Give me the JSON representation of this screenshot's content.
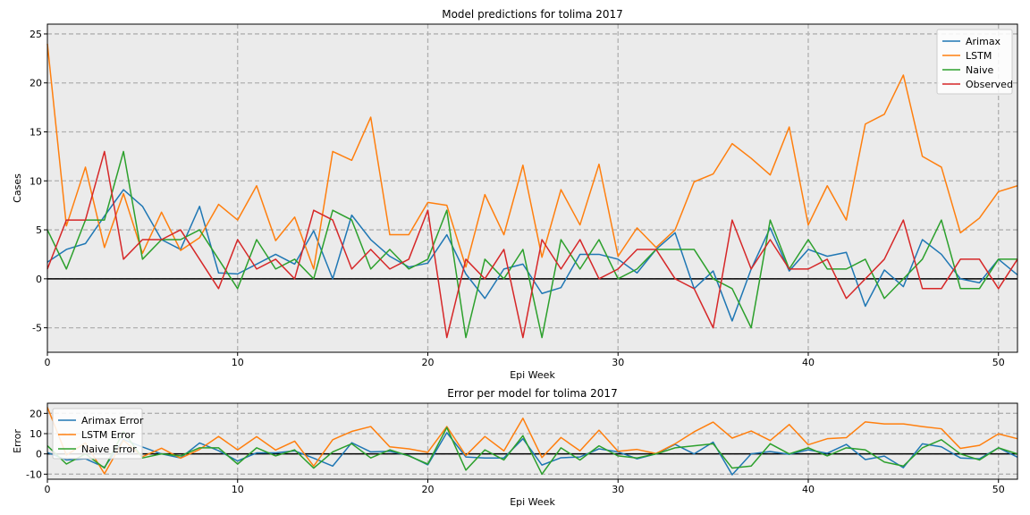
{
  "chart_data": [
    {
      "type": "line",
      "title": "Model predictions for tolima 2017",
      "xlabel": "Epi Week",
      "ylabel": "Cases",
      "xlim": [
        0,
        51
      ],
      "ylim": [
        -7.5,
        26
      ],
      "xticks": [
        0,
        10,
        20,
        30,
        40,
        50
      ],
      "yticks": [
        -5,
        0,
        5,
        10,
        15,
        20,
        25
      ],
      "grid": true,
      "legend": "top-right",
      "x": [
        0,
        1,
        2,
        3,
        4,
        5,
        6,
        7,
        8,
        9,
        10,
        11,
        12,
        13,
        14,
        15,
        16,
        17,
        18,
        19,
        20,
        21,
        22,
        23,
        24,
        25,
        26,
        27,
        28,
        29,
        30,
        31,
        32,
        33,
        34,
        35,
        36,
        37,
        38,
        39,
        40,
        41,
        42,
        43,
        44,
        45,
        46,
        47,
        48,
        49,
        50,
        51
      ],
      "series": [
        {
          "name": "Arimax",
          "color": "#1f77b4",
          "values": [
            1.7,
            3.0,
            3.6,
            6.4,
            9.1,
            7.4,
            4.0,
            3.0,
            7.4,
            0.6,
            0.5,
            1.5,
            2.5,
            1.5,
            4.9,
            0.0,
            6.5,
            4.0,
            2.3,
            1.2,
            1.6,
            4.5,
            0.5,
            -2.0,
            1.0,
            1.5,
            -1.5,
            -0.9,
            2.5,
            2.5,
            2.0,
            0.6,
            3.0,
            4.7,
            -1.0,
            0.8,
            -4.3,
            1.0,
            5.2,
            0.8,
            3.0,
            2.3,
            2.7,
            -2.8,
            0.9,
            -0.8,
            4.0,
            2.5,
            0.0,
            -0.4,
            2.0,
            0.4
          ]
        },
        {
          "name": "LSTM",
          "color": "#ff7f0e",
          "values": [
            24.0,
            5.4,
            11.4,
            3.2,
            8.7,
            2.6,
            6.8,
            2.9,
            4.2,
            7.6,
            6.0,
            9.5,
            3.9,
            6.3,
            1.0,
            13.0,
            12.1,
            16.5,
            4.5,
            4.5,
            7.8,
            7.5,
            1.2,
            8.6,
            4.5,
            11.6,
            2.2,
            9.1,
            5.5,
            11.7,
            2.3,
            5.2,
            3.2,
            5.0,
            9.9,
            10.7,
            13.8,
            12.3,
            10.6,
            15.5,
            5.5,
            9.5,
            6.0,
            15.8,
            16.8,
            20.8,
            12.5,
            11.4,
            4.7,
            6.2,
            8.9,
            9.5
          ]
        },
        {
          "name": "Naive",
          "color": "#2ca02c",
          "values": [
            5.0,
            1.0,
            6.0,
            6.0,
            13.0,
            2.0,
            4.0,
            4.0,
            5.0,
            2.0,
            -1.0,
            4.0,
            1.0,
            2.0,
            0.0,
            7.0,
            6.0,
            1.0,
            3.0,
            1.0,
            2.0,
            7.0,
            -6.0,
            2.0,
            0.0,
            3.0,
            -6.0,
            4.0,
            1.0,
            4.0,
            0.0,
            1.0,
            3.0,
            3.0,
            3.0,
            0.0,
            -1.0,
            -5.0,
            6.0,
            1.0,
            4.0,
            1.0,
            1.0,
            2.0,
            -2.0,
            0.0,
            2.0,
            6.0,
            -1.0,
            -1.0,
            2.0,
            2.0
          ]
        },
        {
          "name": "Observed",
          "color": "#d62728",
          "values": [
            1.0,
            6.0,
            6.0,
            13.0,
            2.0,
            4.0,
            4.0,
            5.0,
            2.0,
            -1.0,
            4.0,
            1.0,
            2.0,
            0.0,
            7.0,
            6.0,
            1.0,
            3.0,
            1.0,
            2.0,
            7.0,
            -6.0,
            2.0,
            0.0,
            3.0,
            -6.0,
            4.0,
            1.0,
            4.0,
            0.0,
            1.0,
            3.0,
            3.0,
            0.0,
            -1.0,
            -5.0,
            6.0,
            1.0,
            4.0,
            1.0,
            1.0,
            2.0,
            -2.0,
            0.0,
            2.0,
            6.0,
            -1.0,
            -1.0,
            2.0,
            2.0,
            -1.0,
            2.0
          ]
        }
      ]
    },
    {
      "type": "line",
      "title": "Error per model for tolima 2017",
      "xlabel": "Epi Week",
      "ylabel": "Error",
      "xlim": [
        0,
        51
      ],
      "ylim": [
        -12.5,
        25
      ],
      "xticks": [
        0,
        10,
        20,
        30,
        40,
        50
      ],
      "yticks": [
        -10,
        0,
        10,
        20
      ],
      "grid": true,
      "legend": "top-left",
      "x": [
        0,
        1,
        2,
        3,
        4,
        5,
        6,
        7,
        8,
        9,
        10,
        11,
        12,
        13,
        14,
        15,
        16,
        17,
        18,
        19,
        20,
        21,
        22,
        23,
        24,
        25,
        26,
        27,
        28,
        29,
        30,
        31,
        32,
        33,
        34,
        35,
        36,
        37,
        38,
        39,
        40,
        41,
        42,
        43,
        44,
        45,
        46,
        47,
        48,
        49,
        50,
        51
      ],
      "series": [
        {
          "name": "Arimax Error",
          "color": "#1f77b4",
          "values": [
            0.7,
            -3.0,
            -2.4,
            -6.6,
            7.1,
            3.4,
            0.0,
            -2.0,
            5.4,
            1.6,
            -3.5,
            0.5,
            0.5,
            1.5,
            -2.1,
            -6.0,
            5.5,
            1.0,
            1.3,
            -0.8,
            -5.4,
            10.5,
            -1.5,
            -2.0,
            -2.0,
            7.5,
            -5.5,
            -1.9,
            -1.5,
            2.5,
            1.0,
            -2.4,
            0.0,
            4.7,
            0.0,
            5.8,
            -10.3,
            0.0,
            1.2,
            -0.2,
            2.0,
            0.3,
            4.7,
            -2.8,
            -1.1,
            -6.8,
            5.0,
            3.5,
            -2.0,
            -2.4,
            3.0,
            -1.6
          ]
        },
        {
          "name": "LSTM Error",
          "color": "#ff7f0e",
          "values": [
            23.0,
            -0.6,
            5.4,
            -9.8,
            6.7,
            -1.4,
            2.8,
            -2.1,
            2.2,
            8.6,
            2.0,
            8.5,
            1.9,
            6.3,
            -6.0,
            7.0,
            11.1,
            13.5,
            3.5,
            2.5,
            0.8,
            13.5,
            -0.8,
            8.6,
            1.5,
            17.6,
            -1.8,
            8.1,
            1.5,
            11.7,
            1.3,
            2.2,
            0.2,
            5.0,
            10.9,
            15.7,
            7.8,
            11.3,
            6.6,
            14.5,
            4.5,
            7.5,
            8.0,
            15.8,
            14.8,
            14.8,
            13.5,
            12.4,
            2.7,
            4.2,
            9.9,
            7.5
          ]
        },
        {
          "name": "Naive Error",
          "color": "#2ca02c",
          "values": [
            4.0,
            -5.0,
            0.0,
            -7.0,
            11.0,
            -2.0,
            0.0,
            -1.0,
            3.0,
            3.0,
            -5.0,
            3.0,
            -1.0,
            2.0,
            -7.0,
            1.0,
            5.0,
            -2.0,
            2.0,
            -1.0,
            -5.0,
            13.0,
            -8.0,
            2.0,
            -3.0,
            9.0,
            -10.0,
            3.0,
            -3.0,
            4.0,
            -1.0,
            -2.0,
            0.0,
            3.0,
            4.0,
            5.0,
            -7.0,
            -6.0,
            5.0,
            0.0,
            3.0,
            -1.0,
            3.0,
            2.0,
            -4.0,
            -6.0,
            3.0,
            7.0,
            0.0,
            -3.0,
            3.0,
            0.0
          ]
        }
      ]
    }
  ]
}
